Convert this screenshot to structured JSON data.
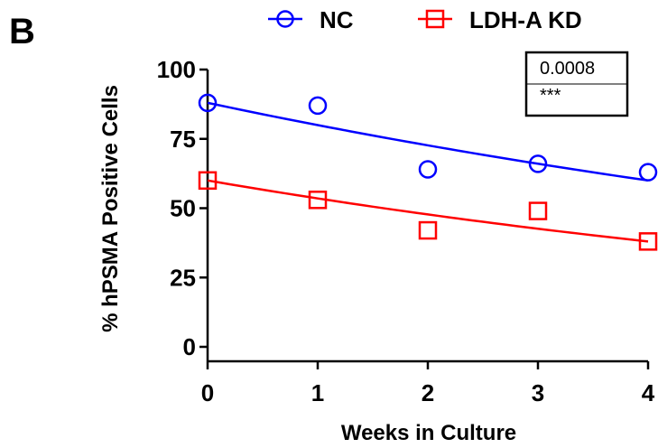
{
  "panel_label": "B",
  "chart_data": {
    "type": "scatter",
    "xlabel": "Weeks in Culture",
    "ylabel": "% hPSMA Positive Cells",
    "x_ticks": [
      0,
      1,
      2,
      3,
      4
    ],
    "y_ticks": [
      0,
      25,
      50,
      75,
      100
    ],
    "xlim": [
      0,
      4
    ],
    "ylim": [
      0,
      100
    ],
    "legend_position": "top",
    "grid": false,
    "series": [
      {
        "name": "NC",
        "marker": "circle",
        "color": "#0000ff",
        "x": [
          0,
          1,
          2,
          3,
          4
        ],
        "y": [
          88,
          87,
          64,
          66,
          63
        ],
        "fit": [
          88,
          60
        ]
      },
      {
        "name": "LDH-A KD",
        "marker": "square",
        "color": "#ff0000",
        "x": [
          0,
          1,
          2,
          3,
          4
        ],
        "y": [
          60,
          53,
          42,
          49,
          38
        ],
        "fit": [
          60,
          38
        ]
      }
    ],
    "annotation": {
      "p_value": "0.0008",
      "significance": "***"
    }
  }
}
